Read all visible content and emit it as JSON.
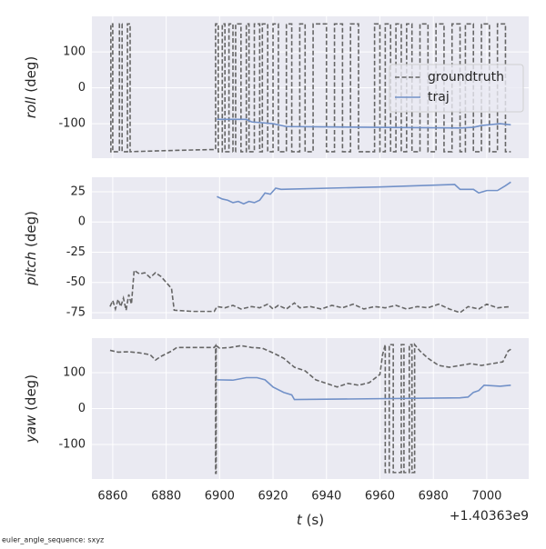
{
  "chart_data": [
    {
      "type": "line",
      "ylabel_symbol": "roll",
      "ylabel_unit": "(deg)",
      "legend": "center right",
      "grid": true,
      "xlim": [
        6852.2,
        7015.7
      ],
      "xticks": [
        6860,
        6880,
        6900,
        6920,
        6940,
        6960,
        6980,
        7000
      ],
      "ylim": [
        -196,
        199
      ],
      "yticks": [
        -100,
        0,
        100
      ],
      "series": [
        {
          "name": "groundtruth",
          "color": "#666666",
          "dashed": true,
          "x": [
            6859,
            6859.3,
            6859.3,
            6860,
            6860,
            6862.5,
            6862.5,
            6863.5,
            6863.5,
            6865.5,
            6865.5,
            6866.5,
            6866.5,
            6880,
            6897,
            6898.5,
            6898.5,
            6899.5,
            6899.5,
            6901,
            6901,
            6902,
            6902,
            6903.5,
            6903.5,
            6905,
            6905,
            6906,
            6906,
            6908,
            6908,
            6910,
            6910,
            6911,
            6911,
            6913,
            6913,
            6915,
            6915,
            6916,
            6916,
            6918,
            6918,
            6920,
            6920,
            6922,
            6922,
            6925,
            6925,
            6927,
            6927,
            6930,
            6930,
            6932,
            6932,
            6935,
            6935,
            6940,
            6940,
            6943,
            6943,
            6946,
            6946,
            6949,
            6949,
            6952,
            6952,
            6958,
            6958,
            6960,
            6960,
            6962,
            6962,
            6964,
            6964,
            6966,
            6966,
            6968,
            6968,
            6970,
            6970,
            6972,
            6972,
            6975,
            6975,
            6978,
            6978,
            6981,
            6981,
            6984,
            6984,
            6987,
            6987,
            6990,
            6990,
            6992,
            6992,
            6995,
            6995,
            6998,
            6998,
            7001,
            7001,
            7004,
            7004,
            7007,
            7007,
            7009
          ],
          "values": [
            -178,
            -178,
            178,
            178,
            -178,
            -178,
            178,
            178,
            -178,
            -178,
            178,
            178,
            -178,
            -175,
            -172,
            -172,
            178,
            178,
            -178,
            -178,
            178,
            178,
            -178,
            -178,
            178,
            178,
            -178,
            -178,
            178,
            178,
            -178,
            -178,
            178,
            178,
            -178,
            -178,
            178,
            178,
            -178,
            -178,
            178,
            178,
            -178,
            -178,
            178,
            178,
            -178,
            -178,
            178,
            178,
            -178,
            -178,
            178,
            178,
            -178,
            -178,
            178,
            178,
            -178,
            -178,
            178,
            178,
            -178,
            -178,
            178,
            178,
            -178,
            -178,
            178,
            178,
            -178,
            -178,
            178,
            178,
            -178,
            -178,
            178,
            178,
            -178,
            -178,
            178,
            178,
            -178,
            -178,
            178,
            178,
            -178,
            -178,
            178,
            178,
            -178,
            -178,
            178,
            178,
            -178,
            -178,
            178,
            178,
            -178,
            -178,
            178,
            178,
            -178,
            -178,
            178,
            178,
            -178,
            -178
          ]
        },
        {
          "name": "traj",
          "color": "#7291c8",
          "dashed": false,
          "x": [
            6899,
            6910,
            6912,
            6920,
            6925,
            6990,
            6995,
            6998,
            7005,
            7009
          ],
          "values": [
            -88,
            -88,
            -95,
            -100,
            -108,
            -112,
            -110,
            -105,
            -100,
            -103
          ]
        }
      ]
    },
    {
      "type": "line",
      "ylabel_symbol": "pitch",
      "ylabel_unit": "(deg)",
      "grid": true,
      "xlim": [
        6852.2,
        7015.7
      ],
      "xticks": [
        6860,
        6880,
        6900,
        6920,
        6940,
        6960,
        6980,
        7000
      ],
      "ylim": [
        -80.3,
        37
      ],
      "yticks": [
        -75,
        -50,
        -25,
        0,
        25
      ],
      "series": [
        {
          "name": "groundtruth",
          "color": "#666666",
          "dashed": true,
          "x": [
            6859,
            6860,
            6861,
            6862,
            6863,
            6864,
            6865,
            6866,
            6867,
            6868,
            6870,
            6872,
            6874,
            6876,
            6878,
            6880,
            6882,
            6883,
            6890,
            6898,
            6899,
            6902,
            6905,
            6908,
            6912,
            6915,
            6918,
            6920,
            6922,
            6925,
            6928,
            6930,
            6934,
            6938,
            6942,
            6946,
            6950,
            6954,
            6958,
            6962,
            6966,
            6970,
            6974,
            6978,
            6982,
            6986,
            6990,
            6993,
            6997,
            7000,
            7004,
            7009
          ],
          "values": [
            -70,
            -65,
            -72,
            -64,
            -70,
            -63,
            -73,
            -60,
            -68,
            -40,
            -43,
            -42,
            -46,
            -42,
            -45,
            -50,
            -55,
            -73,
            -74,
            -74,
            -70,
            -71,
            -69,
            -72,
            -70,
            -71,
            -68,
            -72,
            -69,
            -72,
            -67,
            -71,
            -70,
            -72,
            -69,
            -71,
            -68,
            -72,
            -70,
            -71,
            -69,
            -72,
            -70,
            -71,
            -68,
            -72,
            -75,
            -70,
            -72,
            -68,
            -71,
            -70
          ]
        },
        {
          "name": "traj",
          "color": "#7291c8",
          "dashed": false,
          "x": [
            6899,
            6901,
            6903,
            6905,
            6907,
            6909,
            6911,
            6913,
            6915,
            6917,
            6919,
            6921,
            6923,
            6960,
            6988,
            6990,
            6995,
            6997,
            7000,
            7004,
            7007,
            7009
          ],
          "values": [
            21,
            19,
            18,
            16,
            17,
            15,
            17,
            16,
            18,
            24,
            23,
            28,
            27,
            29,
            31,
            27,
            27,
            24,
            26,
            26,
            30,
            33
          ]
        }
      ]
    },
    {
      "type": "line",
      "ylabel_symbol": "yaw",
      "ylabel_unit": "(deg)",
      "grid": true,
      "xticklabels": true,
      "xlabel_symbol": "t",
      "xlabel_unit": "(s)",
      "x_offset_label": "+1.40363e9",
      "xlim": [
        6852.2,
        7015.7
      ],
      "xticks": [
        6860,
        6880,
        6900,
        6920,
        6940,
        6960,
        6980,
        7000
      ],
      "ylim": [
        -196,
        196
      ],
      "yticks": [
        -100,
        0,
        100
      ],
      "series": [
        {
          "name": "groundtruth",
          "color": "#666666",
          "dashed": true,
          "x": [
            6859,
            6862,
            6866,
            6870,
            6874,
            6876,
            6878,
            6882,
            6884,
            6898,
            6898.5,
            6898.5,
            6898.7,
            6898.7,
            6900,
            6904,
            6908,
            6912,
            6916,
            6920,
            6924,
            6928,
            6932,
            6936,
            6940,
            6944,
            6948,
            6952,
            6956,
            6960,
            6961,
            6962,
            6962,
            6963.5,
            6963.5,
            6965,
            6965,
            6968,
            6968,
            6969,
            6969,
            6971,
            6971,
            6972,
            6972,
            6973,
            6973,
            6975,
            6978,
            6982,
            6986,
            6990,
            6994,
            6998,
            7002,
            7006,
            7008,
            7009
          ],
          "values": [
            162,
            157,
            158,
            155,
            150,
            135,
            145,
            160,
            170,
            170,
            175,
            -180,
            -180,
            175,
            168,
            170,
            175,
            170,
            168,
            155,
            140,
            115,
            105,
            80,
            70,
            60,
            70,
            65,
            72,
            95,
            150,
            178,
            -178,
            -178,
            178,
            178,
            -178,
            -178,
            178,
            178,
            -178,
            -178,
            178,
            178,
            -178,
            -178,
            178,
            160,
            140,
            120,
            115,
            120,
            125,
            120,
            125,
            130,
            160,
            165
          ]
        },
        {
          "name": "traj",
          "color": "#7291c8",
          "dashed": false,
          "x": [
            6899,
            6905,
            6910,
            6914,
            6917,
            6920,
            6924,
            6927,
            6928,
            6990,
            6993,
            6995,
            6997,
            6999,
            7005,
            7009
          ],
          "values": [
            80,
            79,
            86,
            86,
            80,
            60,
            45,
            38,
            25,
            30,
            32,
            45,
            50,
            65,
            62,
            65
          ]
        }
      ]
    }
  ],
  "footer": "euler_angle_sequence: sxyz"
}
